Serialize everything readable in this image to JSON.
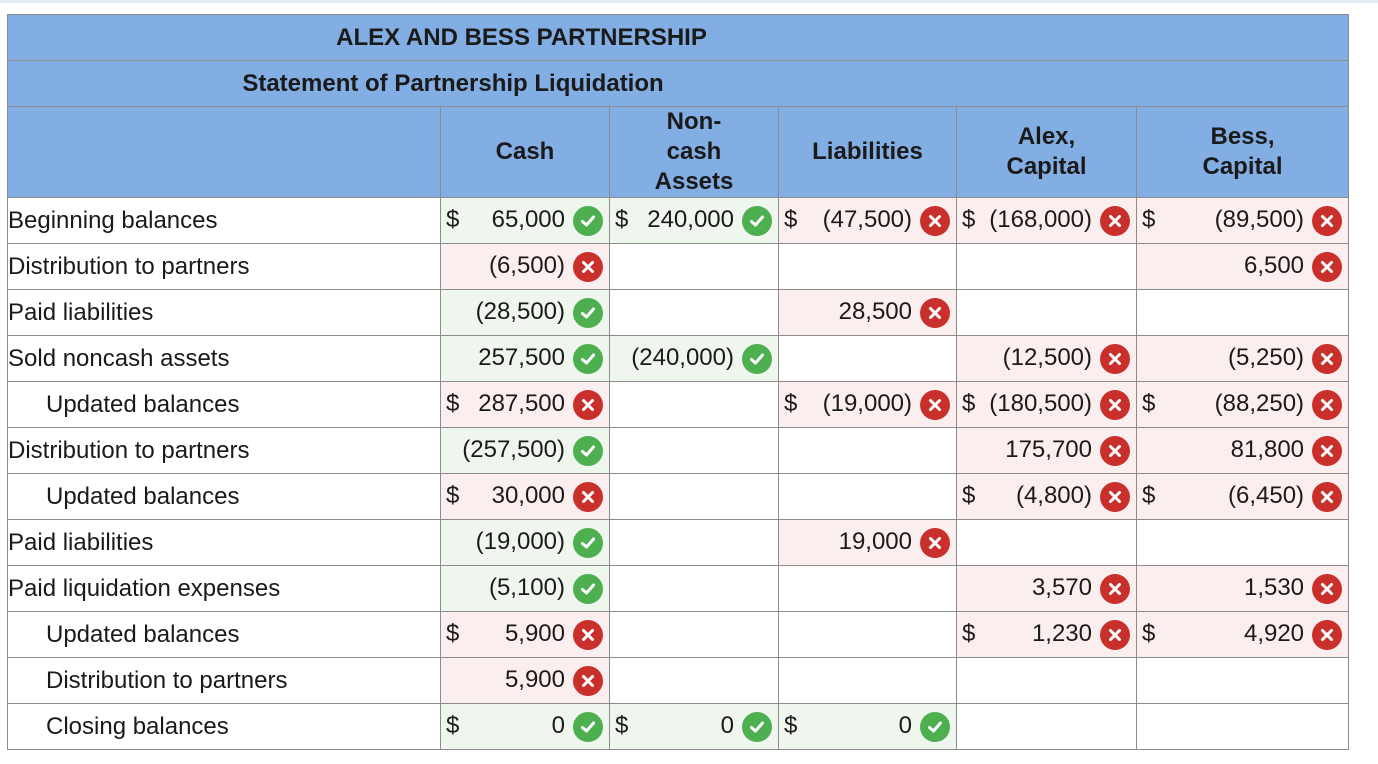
{
  "title": "ALEX AND BESS PARTNERSHIP",
  "subtitle": "Statement of Partnership Liquidation",
  "columns": [
    {
      "line1": "Cash",
      "line2": "",
      "line3": ""
    },
    {
      "line1": "Non-",
      "line2": "cash",
      "line3": "Assets"
    },
    {
      "line1": "Liabilities",
      "line2": "",
      "line3": ""
    },
    {
      "line1": "Alex,",
      "line2": "Capital",
      "line3": ""
    },
    {
      "line1": "Bess,",
      "line2": "Capital",
      "line3": ""
    }
  ],
  "rows": [
    {
      "label": "Beginning balances",
      "indent": false,
      "cells": [
        {
          "dollar": "$",
          "value": "65,000",
          "status": "correct"
        },
        {
          "dollar": "$",
          "value": "240,000",
          "status": "correct"
        },
        {
          "dollar": "$",
          "value": "(47,500)",
          "status": "incorrect"
        },
        {
          "dollar": "$",
          "value": "(168,000)",
          "status": "incorrect"
        },
        {
          "dollar": "$",
          "value": "(89,500)",
          "status": "incorrect"
        }
      ]
    },
    {
      "label": "Distribution to partners",
      "indent": false,
      "cells": [
        {
          "dollar": "",
          "value": "(6,500)",
          "status": "incorrect"
        },
        {
          "dollar": "",
          "value": "",
          "status": "none"
        },
        {
          "dollar": "",
          "value": "",
          "status": "none"
        },
        {
          "dollar": "",
          "value": "",
          "status": "none"
        },
        {
          "dollar": "",
          "value": "6,500",
          "status": "incorrect"
        }
      ]
    },
    {
      "label": "Paid liabilities",
      "indent": false,
      "cells": [
        {
          "dollar": "",
          "value": "(28,500)",
          "status": "correct"
        },
        {
          "dollar": "",
          "value": "",
          "status": "none"
        },
        {
          "dollar": "",
          "value": "28,500",
          "status": "incorrect"
        },
        {
          "dollar": "",
          "value": "",
          "status": "none"
        },
        {
          "dollar": "",
          "value": "",
          "status": "none"
        }
      ]
    },
    {
      "label": "Sold noncash assets",
      "indent": false,
      "cells": [
        {
          "dollar": "",
          "value": "257,500",
          "status": "correct"
        },
        {
          "dollar": "",
          "value": "(240,000)",
          "status": "correct"
        },
        {
          "dollar": "",
          "value": "",
          "status": "none"
        },
        {
          "dollar": "",
          "value": "(12,500)",
          "status": "incorrect"
        },
        {
          "dollar": "",
          "value": "(5,250)",
          "status": "incorrect"
        }
      ]
    },
    {
      "label": "Updated balances",
      "indent": true,
      "cells": [
        {
          "dollar": "$",
          "value": "287,500",
          "status": "incorrect"
        },
        {
          "dollar": "",
          "value": "",
          "status": "none"
        },
        {
          "dollar": "$",
          "value": "(19,000)",
          "status": "incorrect"
        },
        {
          "dollar": "$",
          "value": "(180,500)",
          "status": "incorrect"
        },
        {
          "dollar": "$",
          "value": "(88,250)",
          "status": "incorrect"
        }
      ]
    },
    {
      "label": "Distribution to partners",
      "indent": false,
      "cells": [
        {
          "dollar": "",
          "value": "(257,500)",
          "status": "correct"
        },
        {
          "dollar": "",
          "value": "",
          "status": "none"
        },
        {
          "dollar": "",
          "value": "",
          "status": "none"
        },
        {
          "dollar": "",
          "value": "175,700",
          "status": "incorrect"
        },
        {
          "dollar": "",
          "value": "81,800",
          "status": "incorrect"
        }
      ]
    },
    {
      "label": "Updated balances",
      "indent": true,
      "cells": [
        {
          "dollar": "$",
          "value": "30,000",
          "status": "incorrect"
        },
        {
          "dollar": "",
          "value": "",
          "status": "none"
        },
        {
          "dollar": "",
          "value": "",
          "status": "none"
        },
        {
          "dollar": "$",
          "value": "(4,800)",
          "status": "incorrect"
        },
        {
          "dollar": "$",
          "value": "(6,450)",
          "status": "incorrect"
        }
      ]
    },
    {
      "label": "Paid liabilities",
      "indent": false,
      "cells": [
        {
          "dollar": "",
          "value": "(19,000)",
          "status": "correct"
        },
        {
          "dollar": "",
          "value": "",
          "status": "none"
        },
        {
          "dollar": "",
          "value": "19,000",
          "status": "incorrect"
        },
        {
          "dollar": "",
          "value": "",
          "status": "none"
        },
        {
          "dollar": "",
          "value": "",
          "status": "none"
        }
      ]
    },
    {
      "label": "Paid liquidation expenses",
      "indent": false,
      "cells": [
        {
          "dollar": "",
          "value": "(5,100)",
          "status": "correct"
        },
        {
          "dollar": "",
          "value": "",
          "status": "none"
        },
        {
          "dollar": "",
          "value": "",
          "status": "none"
        },
        {
          "dollar": "",
          "value": "3,570",
          "status": "incorrect"
        },
        {
          "dollar": "",
          "value": "1,530",
          "status": "incorrect"
        }
      ]
    },
    {
      "label": "Updated balances",
      "indent": true,
      "cells": [
        {
          "dollar": "$",
          "value": "5,900",
          "status": "incorrect"
        },
        {
          "dollar": "",
          "value": "",
          "status": "none"
        },
        {
          "dollar": "",
          "value": "",
          "status": "none"
        },
        {
          "dollar": "$",
          "value": "1,230",
          "status": "incorrect"
        },
        {
          "dollar": "$",
          "value": "4,920",
          "status": "incorrect"
        }
      ]
    },
    {
      "label": "Distribution to partners",
      "indent": true,
      "cells": [
        {
          "dollar": "",
          "value": "5,900",
          "status": "incorrect"
        },
        {
          "dollar": "",
          "value": "",
          "status": "none"
        },
        {
          "dollar": "",
          "value": "",
          "status": "none"
        },
        {
          "dollar": "",
          "value": "",
          "status": "none"
        },
        {
          "dollar": "",
          "value": "",
          "status": "none"
        }
      ]
    },
    {
      "label": "Closing balances",
      "indent": true,
      "cells": [
        {
          "dollar": "$",
          "value": "0",
          "status": "correct"
        },
        {
          "dollar": "$",
          "value": "0",
          "status": "correct"
        },
        {
          "dollar": "$",
          "value": "0",
          "status": "correct"
        },
        {
          "dollar": "",
          "value": "",
          "status": "none"
        },
        {
          "dollar": "",
          "value": "",
          "status": "none"
        }
      ]
    }
  ],
  "colors": {
    "header_bg": "#82aee3",
    "correct": "#4daf50",
    "incorrect": "#c9302c",
    "incorrect_cell_bg": "#fbeeee",
    "correct_cell_bg": "#eef6ee"
  },
  "icons": {
    "correct": "check-circle-icon",
    "incorrect": "x-circle-icon"
  }
}
